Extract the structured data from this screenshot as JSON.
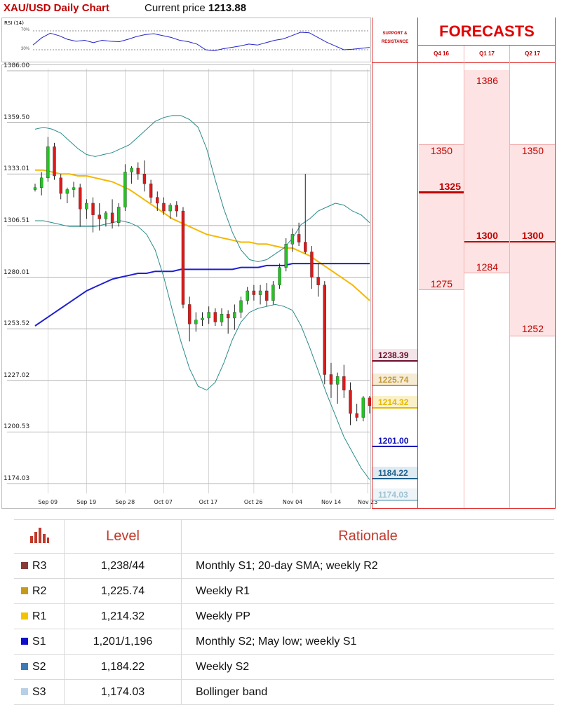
{
  "header": {
    "chart_title": "XAU/USD Daily Chart",
    "current_price_label": "Current price",
    "current_price_value": "1213.88"
  },
  "rsi": {
    "label": "RSI (14)",
    "levels": [
      "70%",
      "30%"
    ]
  },
  "support_resistance": {
    "header": "SUPPORT & RESISTANCE",
    "levels": [
      {
        "value": "1238.39",
        "color": "#6b0f2b",
        "bg": "#f3e5ea"
      },
      {
        "value": "1225.74",
        "color": "#c49a38",
        "bg": "#f6ecd6"
      },
      {
        "value": "1214.32",
        "color": "#e6b800",
        "bg": "#fbf1c9"
      },
      {
        "value": "1201.00",
        "color": "#0b0bb8",
        "bg": "#ffffff"
      },
      {
        "value": "1184.22",
        "color": "#1f5f8b",
        "bg": "#dfeaf2"
      },
      {
        "value": "1174.03",
        "color": "#9fc3d3",
        "bg": "#eef5f8"
      }
    ]
  },
  "forecasts": {
    "title": "FORECASTS",
    "quarters": [
      "Q4 16",
      "Q1 17",
      "Q2 17"
    ],
    "values": {
      "q4_16": {
        "high": "1350",
        "mid": "1325",
        "low": "1275"
      },
      "q1_17": {
        "high": "1386",
        "mid": "1300",
        "low": "1284"
      },
      "q2_17": {
        "high": "1350",
        "mid": "1300",
        "low": "1252"
      }
    }
  },
  "chart_data": {
    "type": "candlestick",
    "title": "XAU/USD Daily Chart",
    "y_ticks": [
      1386.0,
      1359.5,
      1333.01,
      1306.51,
      1280.01,
      1253.52,
      1227.02,
      1200.53,
      1174.03
    ],
    "ylim": [
      1168,
      1390
    ],
    "x_ticks": [
      "Sep 09",
      "Sep 19",
      "Sep 28",
      "Oct 07",
      "Oct 17",
      "Oct 26",
      "Nov 04",
      "Nov 14",
      "Nov 23"
    ],
    "candles": [
      [
        1325,
        1328,
        1324,
        1326
      ],
      [
        1326,
        1334,
        1322,
        1331
      ],
      [
        1331,
        1352,
        1329,
        1347
      ],
      [
        1347,
        1349,
        1330,
        1332
      ],
      [
        1331,
        1333,
        1320,
        1323
      ],
      [
        1323,
        1326,
        1318,
        1325
      ],
      [
        1325,
        1329,
        1321,
        1326
      ],
      [
        1326,
        1328,
        1306,
        1315
      ],
      [
        1315,
        1320,
        1310,
        1318
      ],
      [
        1318,
        1321,
        1303,
        1312
      ],
      [
        1312,
        1318,
        1304,
        1310
      ],
      [
        1310,
        1314,
        1306,
        1313
      ],
      [
        1313,
        1320,
        1305,
        1308
      ],
      [
        1308,
        1318,
        1306,
        1316
      ],
      [
        1316,
        1338,
        1314,
        1334
      ],
      [
        1334,
        1337,
        1328,
        1336
      ],
      [
        1336,
        1339,
        1330,
        1333
      ],
      [
        1333,
        1340,
        1324,
        1328
      ],
      [
        1328,
        1330,
        1318,
        1321
      ],
      [
        1321,
        1324,
        1314,
        1318
      ],
      [
        1318,
        1321,
        1312,
        1314
      ],
      [
        1314,
        1318,
        1310,
        1317
      ],
      [
        1317,
        1319,
        1311,
        1314
      ],
      [
        1314,
        1316,
        1264,
        1266
      ],
      [
        1266,
        1270,
        1247,
        1256
      ],
      [
        1256,
        1262,
        1252,
        1258
      ],
      [
        1258,
        1262,
        1255,
        1259
      ],
      [
        1259,
        1265,
        1256,
        1262
      ],
      [
        1262,
        1264,
        1255,
        1257
      ],
      [
        1257,
        1264,
        1255,
        1261
      ],
      [
        1261,
        1263,
        1251,
        1259
      ],
      [
        1259,
        1266,
        1253,
        1262
      ],
      [
        1262,
        1270,
        1259,
        1268
      ],
      [
        1268,
        1275,
        1266,
        1273
      ],
      [
        1273,
        1276,
        1268,
        1271
      ],
      [
        1271,
        1276,
        1266,
        1273
      ],
      [
        1273,
        1277,
        1265,
        1268
      ],
      [
        1268,
        1278,
        1266,
        1276
      ],
      [
        1276,
        1287,
        1274,
        1285
      ],
      [
        1285,
        1300,
        1283,
        1297
      ],
      [
        1297,
        1305,
        1293,
        1302
      ],
      [
        1302,
        1308,
        1296,
        1298
      ],
      [
        1298,
        1333,
        1292,
        1293
      ],
      [
        1293,
        1296,
        1274,
        1280
      ],
      [
        1280,
        1287,
        1270,
        1276
      ],
      [
        1276,
        1278,
        1225,
        1230
      ],
      [
        1230,
        1236,
        1218,
        1225
      ],
      [
        1225,
        1231,
        1215,
        1229
      ],
      [
        1229,
        1235,
        1218,
        1222
      ],
      [
        1222,
        1226,
        1204,
        1210
      ],
      [
        1210,
        1215,
        1206,
        1208
      ],
      [
        1208,
        1219,
        1206,
        1218
      ],
      [
        1218,
        1219,
        1210,
        1214
      ]
    ],
    "moving_averages": [
      {
        "name": "100-day SMA",
        "color": "#f5b800",
        "values": [
          1335,
          1335,
          1334,
          1333,
          1333,
          1332,
          1332,
          1331,
          1330,
          1329,
          1327,
          1325,
          1322,
          1319,
          1316,
          1313,
          1310,
          1308,
          1306,
          1304,
          1302,
          1301,
          1300,
          1299,
          1298,
          1298,
          1297,
          1297,
          1296,
          1295,
          1295,
          1293,
          1291,
          1288,
          1285,
          1282,
          1279,
          1276,
          1272,
          1268
        ]
      },
      {
        "name": "200-day SMA",
        "color": "#1f1fd1",
        "values": [
          1255,
          1258,
          1261,
          1264,
          1267,
          1270,
          1273,
          1275,
          1277,
          1279,
          1280,
          1281,
          1282,
          1282,
          1283,
          1283,
          1283,
          1284,
          1284,
          1284,
          1284,
          1284,
          1284,
          1284,
          1285,
          1285,
          1285,
          1286,
          1286,
          1286,
          1287,
          1287,
          1287,
          1287,
          1287,
          1287,
          1287,
          1287,
          1287,
          1287
        ]
      },
      {
        "name": "Bollinger upper",
        "color": "#2b8a8a",
        "values": [
          1356,
          1357,
          1356,
          1354,
          1350,
          1346,
          1343,
          1342,
          1343,
          1344,
          1346,
          1348,
          1352,
          1356,
          1360,
          1362,
          1363,
          1363,
          1361,
          1357,
          1346,
          1330,
          1315,
          1303,
          1294,
          1289,
          1288,
          1289,
          1292,
          1295,
          1300,
          1307,
          1310,
          1314,
          1316,
          1318,
          1317,
          1314,
          1312,
          1308
        ]
      },
      {
        "name": "Bollinger lower",
        "color": "#2b8a8a",
        "values": [
          1309,
          1309,
          1308,
          1307,
          1306,
          1306,
          1306,
          1306,
          1307,
          1308,
          1309,
          1308,
          1306,
          1302,
          1294,
          1280,
          1263,
          1247,
          1233,
          1224,
          1222,
          1226,
          1236,
          1248,
          1257,
          1262,
          1264,
          1265,
          1266,
          1265,
          1263,
          1255,
          1244,
          1232,
          1220,
          1209,
          1198,
          1190,
          1182,
          1176
        ]
      }
    ],
    "rsi_values": [
      40,
      55,
      65,
      60,
      52,
      48,
      50,
      45,
      50,
      48,
      47,
      52,
      58,
      62,
      64,
      60,
      56,
      50,
      47,
      42,
      30,
      28,
      32,
      35,
      38,
      42,
      40,
      45,
      50,
      53,
      60,
      67,
      66,
      56,
      46,
      38,
      30,
      31,
      33,
      35
    ]
  },
  "levels_table": {
    "columns": [
      "Level",
      "Rationale"
    ],
    "rows": [
      {
        "name": "R3",
        "level": "1,238/44",
        "rationale": "Monthly S1; 20-day SMA; weekly R2",
        "color": "#8b3a3a"
      },
      {
        "name": "R2",
        "level": "1,225.74",
        "rationale": "Weekly R1",
        "color": "#c49a1a"
      },
      {
        "name": "R1",
        "level": "1,214.32",
        "rationale": "Weekly PP",
        "color": "#f2c400"
      },
      {
        "name": "S1",
        "level": "1,201/1,196",
        "rationale": "Monthly S2; May low; weekly S1",
        "color": "#1010c8"
      },
      {
        "name": "S2",
        "level": "1,184.22",
        "rationale": "Weekly S2",
        "color": "#3d7ab8"
      },
      {
        "name": "S3",
        "level": "1,174.03",
        "rationale": "Bollinger band",
        "color": "#b8d0e6"
      }
    ]
  }
}
